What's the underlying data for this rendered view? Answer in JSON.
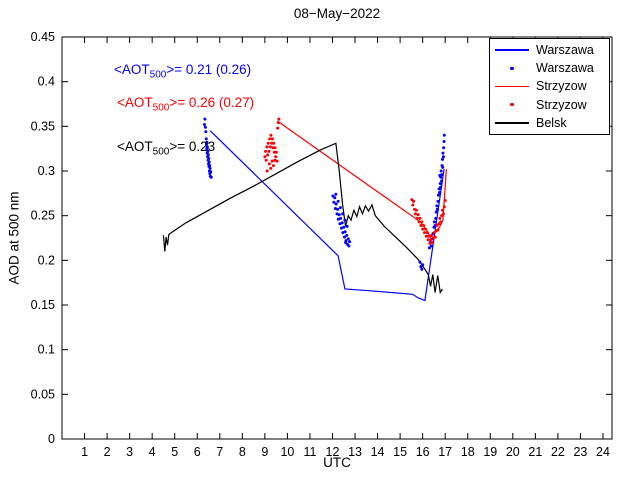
{
  "chart_data": {
    "type": "line",
    "title": "08−May−2022",
    "xlabel": "UTC",
    "ylabel": "AOD at 500 nm",
    "xlim": [
      0,
      24.4
    ],
    "ylim": [
      0,
      0.45
    ],
    "grid": false,
    "legend_position": "top-right-inside",
    "xticks": [
      1,
      2,
      3,
      4,
      5,
      6,
      7,
      8,
      9,
      10,
      11,
      12,
      13,
      14,
      15,
      16,
      17,
      18,
      19,
      20,
      21,
      22,
      23,
      24
    ],
    "yticks": [
      [
        0,
        "0"
      ],
      [
        0.05,
        "0.05"
      ],
      [
        0.1,
        "0.1"
      ],
      [
        0.15,
        "0.15"
      ],
      [
        0.2,
        "0.2"
      ],
      [
        0.25,
        "0.25"
      ],
      [
        0.3,
        "0.3"
      ],
      [
        0.35,
        "0.35"
      ],
      [
        0.4,
        "0.4"
      ],
      [
        0.45,
        "0.45"
      ]
    ],
    "legend": [
      {
        "label": "Warszawa",
        "type": "line",
        "color": "#0000ff"
      },
      {
        "label": "Warszawa",
        "type": "dot",
        "color": "#0000ff"
      },
      {
        "label": "Strzyzow",
        "type": "line",
        "color": "#ff0000"
      },
      {
        "label": "Strzyzow",
        "type": "dot",
        "color": "#ff0000"
      },
      {
        "label": "Belsk",
        "type": "line",
        "color": "#000000"
      }
    ],
    "annotations": [
      {
        "prefix": "<AOT",
        "sub": "500",
        "rest": ">= 0.21 (0.26)",
        "color": "#0000ff"
      },
      {
        "prefix": "<AOT",
        "sub": "500",
        "rest": ">= 0.26 (0.27)",
        "color": "#ff0000"
      },
      {
        "prefix": "<AOT",
        "sub": "500",
        "rest": ">= 0.23",
        "color": "#000000"
      }
    ],
    "series": [
      {
        "name": "Warszawa line",
        "type": "line",
        "color": "#0000ff",
        "points": [
          [
            6.58,
            0.345
          ],
          [
            12.25,
            0.205
          ],
          [
            12.55,
            0.168
          ],
          [
            13.6,
            0.166
          ],
          [
            14.6,
            0.164
          ],
          [
            15.55,
            0.162
          ],
          [
            15.8,
            0.158
          ],
          [
            16.1,
            0.155
          ],
          [
            16.95,
            0.302
          ]
        ]
      },
      {
        "name": "Strzyzow line",
        "type": "line",
        "color": "#ff0000",
        "points": [
          [
            9.55,
            0.356
          ],
          [
            15.9,
            0.243
          ],
          [
            16.15,
            0.235
          ],
          [
            16.35,
            0.226
          ],
          [
            16.55,
            0.232
          ],
          [
            16.75,
            0.237
          ],
          [
            16.9,
            0.245
          ],
          [
            17.05,
            0.302
          ]
        ]
      },
      {
        "name": "Belsk line",
        "type": "line",
        "color": "#000000",
        "points": [
          [
            4.5,
            0.228
          ],
          [
            4.56,
            0.21
          ],
          [
            4.62,
            0.226
          ],
          [
            4.68,
            0.217
          ],
          [
            4.74,
            0.229
          ],
          [
            4.85,
            0.231
          ],
          [
            5.5,
            0.242
          ],
          [
            6.5,
            0.256
          ],
          [
            7.5,
            0.27
          ],
          [
            8.5,
            0.283
          ],
          [
            9.5,
            0.297
          ],
          [
            10.5,
            0.311
          ],
          [
            11.5,
            0.324
          ],
          [
            12.15,
            0.331
          ],
          [
            12.3,
            0.3
          ],
          [
            12.45,
            0.262
          ],
          [
            12.58,
            0.238
          ],
          [
            12.7,
            0.25
          ],
          [
            12.82,
            0.245
          ],
          [
            12.95,
            0.256
          ],
          [
            13.08,
            0.249
          ],
          [
            13.2,
            0.26
          ],
          [
            13.33,
            0.252
          ],
          [
            13.46,
            0.261
          ],
          [
            13.6,
            0.255
          ],
          [
            13.75,
            0.262
          ],
          [
            13.9,
            0.25
          ],
          [
            14.3,
            0.238
          ],
          [
            14.8,
            0.226
          ],
          [
            15.3,
            0.214
          ],
          [
            15.8,
            0.201
          ],
          [
            16.1,
            0.19
          ],
          [
            16.25,
            0.184
          ],
          [
            16.35,
            0.171
          ],
          [
            16.45,
            0.184
          ],
          [
            16.55,
            0.164
          ],
          [
            16.67,
            0.183
          ],
          [
            16.78,
            0.164
          ],
          [
            16.88,
            0.168
          ]
        ]
      },
      {
        "name": "Warszawa dots",
        "type": "scatter",
        "color": "#0000ff",
        "points": [
          [
            6.32,
            0.352
          ],
          [
            6.34,
            0.358
          ],
          [
            6.36,
            0.349
          ],
          [
            6.38,
            0.344
          ],
          [
            6.4,
            0.336
          ],
          [
            6.41,
            0.33
          ],
          [
            6.42,
            0.325
          ],
          [
            6.43,
            0.332
          ],
          [
            6.44,
            0.32
          ],
          [
            6.45,
            0.327
          ],
          [
            6.46,
            0.316
          ],
          [
            6.47,
            0.322
          ],
          [
            6.48,
            0.312
          ],
          [
            6.49,
            0.318
          ],
          [
            6.5,
            0.308
          ],
          [
            6.51,
            0.314
          ],
          [
            6.52,
            0.305
          ],
          [
            6.53,
            0.31
          ],
          [
            6.54,
            0.3
          ],
          [
            6.55,
            0.306
          ],
          [
            6.56,
            0.297
          ],
          [
            6.57,
            0.303
          ],
          [
            6.58,
            0.294
          ],
          [
            6.6,
            0.299
          ],
          [
            6.62,
            0.293
          ],
          [
            12.02,
            0.272
          ],
          [
            12.06,
            0.265
          ],
          [
            12.1,
            0.27
          ],
          [
            12.13,
            0.258
          ],
          [
            12.16,
            0.263
          ],
          [
            12.2,
            0.252
          ],
          [
            12.23,
            0.257
          ],
          [
            12.26,
            0.246
          ],
          [
            12.3,
            0.251
          ],
          [
            12.33,
            0.241
          ],
          [
            12.36,
            0.247
          ],
          [
            12.4,
            0.236
          ],
          [
            12.43,
            0.242
          ],
          [
            12.46,
            0.231
          ],
          [
            12.5,
            0.237
          ],
          [
            12.53,
            0.226
          ],
          [
            12.56,
            0.232
          ],
          [
            12.6,
            0.222
          ],
          [
            12.63,
            0.228
          ],
          [
            12.66,
            0.218
          ],
          [
            12.7,
            0.224
          ],
          [
            12.73,
            0.216
          ],
          [
            12.76,
            0.221
          ],
          [
            12.45,
            0.252
          ],
          [
            12.35,
            0.259
          ],
          [
            12.25,
            0.266
          ],
          [
            12.15,
            0.274
          ],
          [
            12.55,
            0.245
          ],
          [
            12.65,
            0.238
          ],
          [
            12.58,
            0.22
          ],
          [
            15.88,
            0.198
          ],
          [
            15.92,
            0.193
          ],
          [
            15.96,
            0.19
          ],
          [
            16.0,
            0.195
          ],
          [
            16.3,
            0.214
          ],
          [
            16.34,
            0.22
          ],
          [
            16.38,
            0.216
          ],
          [
            16.42,
            0.224
          ],
          [
            16.46,
            0.23
          ],
          [
            16.5,
            0.237
          ],
          [
            16.52,
            0.243
          ],
          [
            16.55,
            0.239
          ],
          [
            16.58,
            0.247
          ],
          [
            16.6,
            0.254
          ],
          [
            16.63,
            0.261
          ],
          [
            16.65,
            0.257
          ],
          [
            16.68,
            0.266
          ],
          [
            16.7,
            0.273
          ],
          [
            16.73,
            0.28
          ],
          [
            16.75,
            0.276
          ],
          [
            16.78,
            0.286
          ],
          [
            16.8,
            0.293
          ],
          [
            16.82,
            0.3
          ],
          [
            16.85,
            0.296
          ],
          [
            16.86,
            0.306
          ],
          [
            16.88,
            0.313
          ],
          [
            16.9,
            0.32
          ],
          [
            16.92,
            0.316
          ],
          [
            16.93,
            0.326
          ],
          [
            16.95,
            0.333
          ],
          [
            16.96,
            0.34
          ],
          [
            16.89,
            0.304
          ],
          [
            16.84,
            0.289
          ],
          [
            16.8,
            0.282
          ],
          [
            16.76,
            0.295
          ]
        ]
      },
      {
        "name": "Strzyzow dots",
        "type": "scatter",
        "color": "#ff0000",
        "points": [
          [
            9.0,
            0.316
          ],
          [
            9.03,
            0.322
          ],
          [
            9.06,
            0.312
          ],
          [
            9.09,
            0.327
          ],
          [
            9.12,
            0.318
          ],
          [
            9.15,
            0.331
          ],
          [
            9.18,
            0.322
          ],
          [
            9.21,
            0.336
          ],
          [
            9.24,
            0.327
          ],
          [
            9.27,
            0.34
          ],
          [
            9.3,
            0.331
          ],
          [
            9.33,
            0.336
          ],
          [
            9.36,
            0.326
          ],
          [
            9.39,
            0.331
          ],
          [
            9.42,
            0.321
          ],
          [
            9.45,
            0.326
          ],
          [
            9.48,
            0.316
          ],
          [
            9.51,
            0.321
          ],
          [
            9.54,
            0.311
          ],
          [
            9.57,
            0.348
          ],
          [
            9.6,
            0.354
          ],
          [
            9.62,
            0.358
          ],
          [
            9.2,
            0.308
          ],
          [
            9.26,
            0.303
          ],
          [
            9.32,
            0.311
          ],
          [
            9.38,
            0.306
          ],
          [
            9.44,
            0.312
          ],
          [
            9.1,
            0.3
          ],
          [
            15.52,
            0.268
          ],
          [
            15.56,
            0.262
          ],
          [
            15.6,
            0.266
          ],
          [
            15.64,
            0.257
          ],
          [
            15.68,
            0.252
          ],
          [
            15.72,
            0.256
          ],
          [
            15.76,
            0.247
          ],
          [
            15.8,
            0.251
          ],
          [
            15.84,
            0.243
          ],
          [
            15.88,
            0.247
          ],
          [
            15.92,
            0.239
          ],
          [
            15.96,
            0.243
          ],
          [
            16.0,
            0.235
          ],
          [
            16.04,
            0.239
          ],
          [
            16.08,
            0.231
          ],
          [
            16.12,
            0.235
          ],
          [
            16.16,
            0.227
          ],
          [
            16.2,
            0.231
          ],
          [
            16.24,
            0.223
          ],
          [
            16.28,
            0.227
          ],
          [
            16.32,
            0.219
          ],
          [
            16.36,
            0.223
          ],
          [
            16.4,
            0.228
          ],
          [
            16.44,
            0.22
          ],
          [
            16.48,
            0.225
          ],
          [
            16.52,
            0.231
          ],
          [
            16.56,
            0.226
          ],
          [
            16.6,
            0.233
          ],
          [
            16.64,
            0.239
          ],
          [
            16.68,
            0.234
          ],
          [
            16.72,
            0.241
          ],
          [
            16.76,
            0.247
          ],
          [
            16.8,
            0.243
          ],
          [
            16.84,
            0.25
          ],
          [
            16.88,
            0.256
          ],
          [
            16.92,
            0.252
          ],
          [
            16.96,
            0.26
          ],
          [
            17.0,
            0.267
          ]
        ]
      }
    ]
  }
}
